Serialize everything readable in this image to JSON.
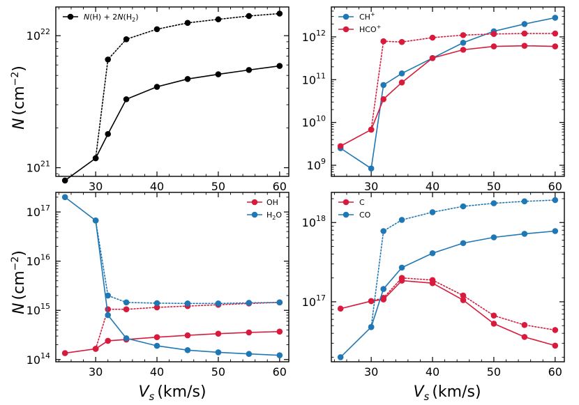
{
  "colors": {
    "black": "#000000",
    "red": "#d81b3c",
    "blue": "#1f77b4"
  },
  "axis_labels": {
    "y_main": "N",
    "y_unit": "(cm",
    "y_exp": "−2",
    "y_close": ")",
    "x_main": "V",
    "x_sub": "s",
    "x_unit": "(km/s)"
  },
  "chart_data": [
    {
      "type": "line",
      "panel": "top-left",
      "yscale": "log",
      "xlim": [
        23.5,
        61.5
      ],
      "ylim": [
        8.6e+20,
        1.65e+22
      ],
      "xticks": [
        30,
        40,
        50,
        60
      ],
      "xtick_labels": [
        "30",
        "40",
        "50",
        "60"
      ],
      "yticks": [
        1e+21,
        1e+22
      ],
      "ytick_labels": [
        [
          "10",
          "21"
        ],
        [
          "10",
          "22"
        ]
      ],
      "ylabel": "N (cm−2)",
      "xlabel": "",
      "legend_position": "top-left",
      "series": [
        {
          "name": "N(H) + 2N(H2)",
          "legend_parts": [
            "N",
            "(H) + 2",
            "N",
            "(H",
            "2",
            ")"
          ],
          "color": "#000000",
          "x": [
            25,
            30,
            32,
            35,
            40,
            45,
            50,
            55,
            60
          ],
          "values": [
            8e+20,
            1.18e+21,
            1.8e+21,
            3.3e+21,
            4.1e+21,
            4.7e+21,
            5.1e+21,
            5.5e+21,
            5.9e+21
          ],
          "dotted_x": [
            30,
            32,
            35,
            40,
            45,
            50,
            55,
            60
          ],
          "dotted_values": [
            1.18e+21,
            6.6e+21,
            9.4e+21,
            1.12e+22,
            1.25e+22,
            1.33e+22,
            1.41e+22,
            1.47e+22
          ]
        }
      ]
    },
    {
      "type": "line",
      "panel": "top-right",
      "yscale": "log",
      "xlim": [
        23.5,
        61.5
      ],
      "ylim": [
        550000000.0,
        5000000000000.0
      ],
      "xticks": [
        30,
        40,
        50,
        60
      ],
      "xtick_labels": [
        "30",
        "40",
        "50",
        "60"
      ],
      "yticks": [
        1000000000.0,
        10000000000.0,
        100000000000.0,
        1000000000000.0
      ],
      "ytick_labels": [
        [
          "10",
          "9"
        ],
        [
          "10",
          "10"
        ],
        [
          "10",
          "11"
        ],
        [
          "10",
          "12"
        ]
      ],
      "ylabel": "",
      "xlabel": "",
      "legend_position": "top-left",
      "series": [
        {
          "name": "CH+",
          "legend_parts": [
            "CH",
            "+"
          ],
          "color": "#1f77b4",
          "x": [
            25,
            30,
            32,
            35,
            40,
            45,
            50,
            55,
            60
          ],
          "values": [
            2500000000.0,
            840000000.0,
            75000000000.0,
            140000000000.0,
            320000000000.0,
            730000000000.0,
            1350000000000.0,
            2000000000000.0,
            2800000000000.0
          ],
          "dotted_x": [],
          "dotted_values": []
        },
        {
          "name": "HCO+",
          "legend_parts": [
            "HCO",
            "+"
          ],
          "color": "#d81b3c",
          "x": [
            25,
            30,
            32,
            35,
            40,
            45,
            50,
            55,
            60
          ],
          "values": [
            2800000000.0,
            6800000000.0,
            35000000000.0,
            86000000000.0,
            320000000000.0,
            500000000000.0,
            600000000000.0,
            620000000000.0,
            600000000000.0
          ],
          "dotted_x": [
            30,
            32,
            35,
            40,
            45,
            50,
            55,
            60
          ],
          "dotted_values": [
            6800000000.0,
            790000000000.0,
            760000000000.0,
            960000000000.0,
            1100000000000.0,
            1170000000000.0,
            1200000000000.0,
            1200000000000.0
          ]
        }
      ]
    },
    {
      "type": "line",
      "panel": "bottom-left",
      "yscale": "log",
      "xlim": [
        23.5,
        61.5
      ],
      "ylim": [
        90000000000000.0,
        2.5e+17
      ],
      "xticks": [
        30,
        40,
        50,
        60
      ],
      "xtick_labels": [
        "30",
        "40",
        "50",
        "60"
      ],
      "yticks": [
        100000000000000.0,
        1000000000000000.0,
        1e+16,
        1e+17
      ],
      "ytick_labels": [
        [
          "10",
          "14"
        ],
        [
          "10",
          "15"
        ],
        [
          "10",
          "16"
        ],
        [
          "10",
          "17"
        ]
      ],
      "ylabel": "N (cm−2)",
      "xlabel": "Vs (km/s)",
      "legend_position": "top-right",
      "series": [
        {
          "name": "OH",
          "legend_parts": [
            "OH"
          ],
          "color": "#d81b3c",
          "x": [
            25,
            30,
            32,
            35,
            40,
            45,
            50,
            55,
            60
          ],
          "values": [
            135000000000000.0,
            165000000000000.0,
            240000000000000.0,
            255000000000000.0,
            285000000000000.0,
            310000000000000.0,
            335000000000000.0,
            355000000000000.0,
            370000000000000.0
          ],
          "dotted_x": [
            30,
            32,
            35,
            40,
            45,
            50,
            55,
            60
          ],
          "dotted_values": [
            165000000000000.0,
            1050000000000000.0,
            1050000000000000.0,
            1150000000000000.0,
            1220000000000000.0,
            1300000000000000.0,
            1380000000000000.0,
            1450000000000000.0
          ]
        },
        {
          "name": "H2O",
          "legend_parts": [
            "H",
            "2",
            "O"
          ],
          "color": "#1f77b4",
          "x": [
            25,
            30,
            32,
            35,
            40,
            45,
            50,
            55,
            60
          ],
          "values": [
            2e+17,
            6.7e+16,
            800000000000000.0,
            270000000000000.0,
            190000000000000.0,
            155000000000000.0,
            140000000000000.0,
            130000000000000.0,
            122000000000000.0
          ],
          "dotted_x": [
            30,
            32,
            35,
            40,
            45,
            50,
            55,
            60
          ],
          "dotted_values": [
            6.7e+16,
            2000000000000000.0,
            1450000000000000.0,
            1400000000000000.0,
            1380000000000000.0,
            1380000000000000.0,
            1420000000000000.0,
            1450000000000000.0
          ]
        }
      ]
    },
    {
      "type": "line",
      "panel": "bottom-right",
      "yscale": "log",
      "xlim": [
        23.5,
        61.5
      ],
      "ylim": [
        1.75e+16,
        2.4e+18
      ],
      "xticks": [
        30,
        40,
        50,
        60
      ],
      "xtick_labels": [
        "30",
        "40",
        "50",
        "60"
      ],
      "yticks": [
        1e+17,
        1e+18
      ],
      "ytick_labels": [
        [
          "10",
          "17"
        ],
        [
          "10",
          "18"
        ]
      ],
      "ylabel": "",
      "xlabel": "Vs (km/s)",
      "legend_position": "top-left",
      "series": [
        {
          "name": "C",
          "legend_parts": [
            "C"
          ],
          "color": "#d81b3c",
          "x": [
            25,
            30,
            32,
            35,
            40,
            45,
            50,
            55,
            60
          ],
          "values": [
            8.2e+16,
            1.02e+17,
            1.07e+17,
            1.85e+17,
            1.72e+17,
            1.05e+17,
            5.3e+16,
            3.6e+16,
            2.8e+16
          ],
          "dotted_x": [
            30,
            32,
            35,
            40,
            45,
            50,
            55,
            60
          ],
          "dotted_values": [
            1.02e+17,
            1.12e+17,
            2e+17,
            1.88e+17,
            1.2e+17,
            6.7e+16,
            5.1e+16,
            4.4e+16
          ]
        },
        {
          "name": "CO",
          "legend_parts": [
            "CO"
          ],
          "color": "#1f77b4",
          "x": [
            25,
            30,
            32,
            35,
            40,
            45,
            50,
            55,
            60
          ],
          "values": [
            2e+16,
            4.8e+16,
            1.45e+17,
            2.7e+17,
            4.1e+17,
            5.5e+17,
            6.5e+17,
            7.2e+17,
            7.8e+17
          ],
          "dotted_x": [
            30,
            32,
            35,
            40,
            45,
            50,
            55,
            60
          ],
          "dotted_values": [
            4.8e+16,
            7.8e+17,
            1.08e+18,
            1.35e+18,
            1.6e+18,
            1.75e+18,
            1.85e+18,
            1.92e+18
          ]
        }
      ]
    }
  ]
}
